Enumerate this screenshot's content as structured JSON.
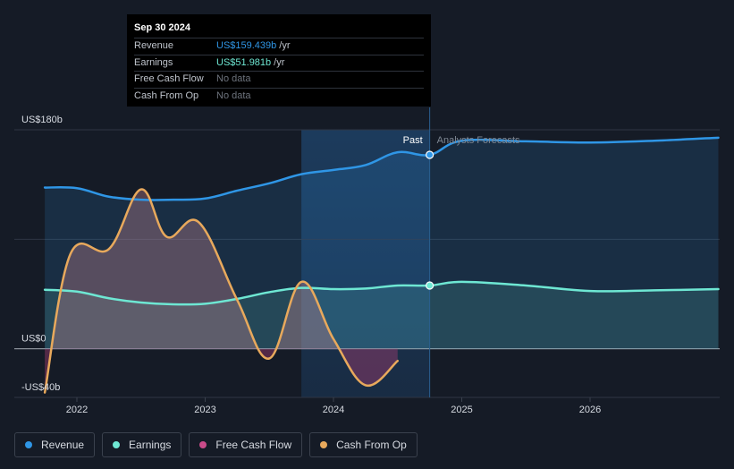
{
  "tooltip": {
    "date": "Sep 30 2024",
    "rows": [
      {
        "label": "Revenue",
        "value": "US$159.439b",
        "unit": "/yr",
        "color": "#2f96e6"
      },
      {
        "label": "Earnings",
        "value": "US$51.981b",
        "unit": "/yr",
        "color": "#6ee7d3"
      },
      {
        "label": "Free Cash Flow",
        "value": "No data",
        "unit": ""
      },
      {
        "label": "Cash From Op",
        "value": "No data",
        "unit": ""
      }
    ]
  },
  "chart_data": {
    "type": "area",
    "y_labels": [
      "US$180b",
      "US$0",
      "-US$40b"
    ],
    "ylim": [
      -40,
      180
    ],
    "xlim": [
      2021.75,
      2027.0
    ],
    "x_ticks": [
      2022,
      2023,
      2024,
      2025,
      2026
    ],
    "x_tick_labels": [
      "2022",
      "2023",
      "2024",
      "2025",
      "2026"
    ],
    "past_label": "Past",
    "forecast_label": "Analysts Forecasts",
    "past_end": 2024.75,
    "grid": true,
    "legend_position": "bottom-left",
    "series": [
      {
        "name": "Revenue",
        "color": "#2f96e6",
        "x": [
          2021.75,
          2022.0,
          2022.25,
          2022.5,
          2022.75,
          2023.0,
          2023.25,
          2023.5,
          2023.75,
          2024.0,
          2024.25,
          2024.5,
          2024.75,
          2025.0,
          2025.5,
          2026.0,
          2026.5,
          2027.0
        ],
        "y": [
          132.5,
          132.0,
          125.0,
          122.5,
          122.5,
          123.5,
          130.0,
          136.0,
          143.5,
          147.0,
          151.0,
          161.5,
          159.4,
          171.0,
          170.5,
          169.5,
          171.0,
          173.5
        ]
      },
      {
        "name": "Earnings",
        "color": "#6ee7d3",
        "x": [
          2021.75,
          2022.0,
          2022.25,
          2022.5,
          2022.75,
          2023.0,
          2023.25,
          2023.5,
          2023.75,
          2024.0,
          2024.25,
          2024.5,
          2024.75,
          2025.0,
          2025.5,
          2026.0,
          2026.5,
          2027.0
        ],
        "y": [
          48.5,
          47.0,
          41.5,
          38.0,
          36.5,
          37.0,
          41.0,
          46.5,
          50.0,
          49.0,
          49.5,
          52.0,
          51.98,
          55.0,
          52.0,
          47.5,
          48.0,
          49.0
        ]
      },
      {
        "name": "Free Cash Flow",
        "color": "#c94b8a",
        "x": [],
        "y": []
      },
      {
        "name": "Cash From Op",
        "color": "#e8a95c",
        "x": [
          2021.75,
          2021.95,
          2022.25,
          2022.5,
          2022.7,
          2022.95,
          2023.25,
          2023.5,
          2023.75,
          2024.0,
          2024.25,
          2024.5
        ],
        "y": [
          -36.0,
          78.0,
          82.0,
          131.0,
          92.0,
          104.0,
          40.0,
          -8.0,
          55.0,
          8.0,
          -30.0,
          -10.0
        ]
      }
    ]
  },
  "legend": [
    {
      "label": "Revenue",
      "color": "#2f96e6"
    },
    {
      "label": "Earnings",
      "color": "#6ee7d3"
    },
    {
      "label": "Free Cash Flow",
      "color": "#c94b8a"
    },
    {
      "label": "Cash From Op",
      "color": "#e8a95c"
    }
  ]
}
